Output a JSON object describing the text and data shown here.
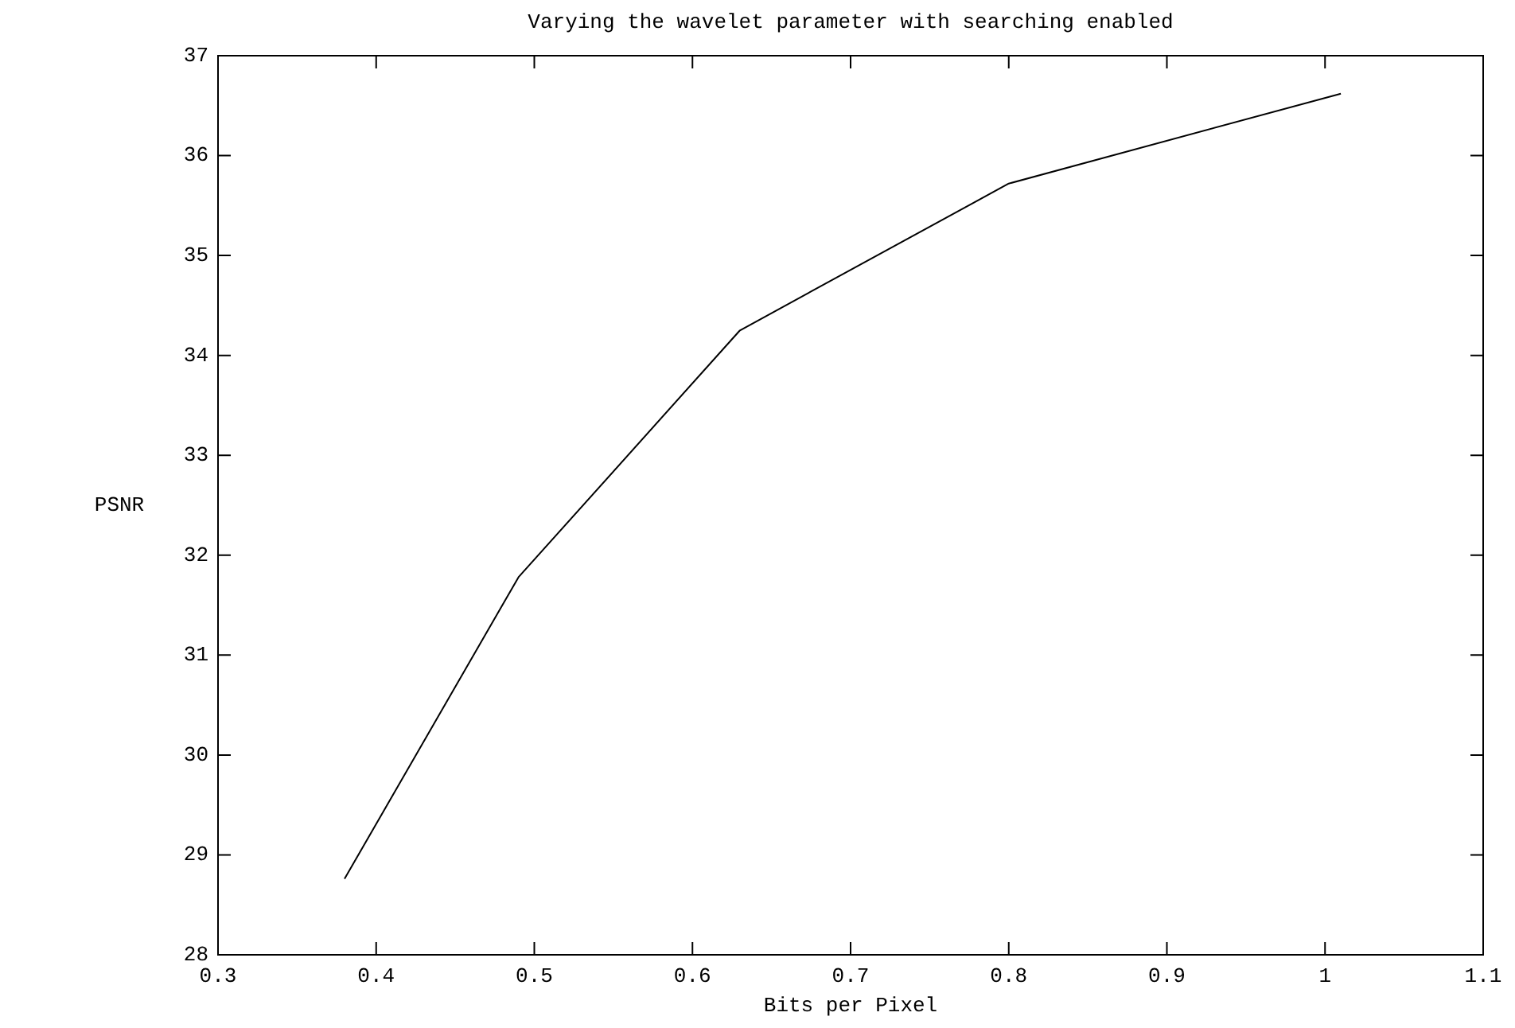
{
  "chart_data": {
    "type": "line",
    "title": "Varying the wavelet parameter with searching enabled",
    "xlabel": "Bits per Pixel",
    "ylabel": "PSNR",
    "x": [
      0.38,
      0.49,
      0.63,
      0.8,
      1.01
    ],
    "series": [
      {
        "color": "#000000",
        "values": [
          28.76,
          31.78,
          34.25,
          35.72,
          36.62
        ]
      }
    ],
    "xlim": [
      0.3,
      1.1
    ],
    "xticks": [
      {
        "value": 0.3,
        "label": "0.3"
      },
      {
        "value": 0.4,
        "label": "0.4"
      },
      {
        "value": 0.5,
        "label": "0.5"
      },
      {
        "value": 0.6,
        "label": "0.6"
      },
      {
        "value": 0.7,
        "label": "0.7"
      },
      {
        "value": 0.8,
        "label": "0.8"
      },
      {
        "value": 0.9,
        "label": "0.9"
      },
      1,
      {
        "value": 1.1,
        "label": "1.1"
      }
    ],
    "ylim": [
      28,
      37
    ],
    "yticks": [
      28,
      29,
      30,
      31,
      32,
      33,
      34,
      35,
      36,
      37
    ],
    "grid": false,
    "legend": false,
    "marker": "none",
    "line_style": "solid"
  }
}
